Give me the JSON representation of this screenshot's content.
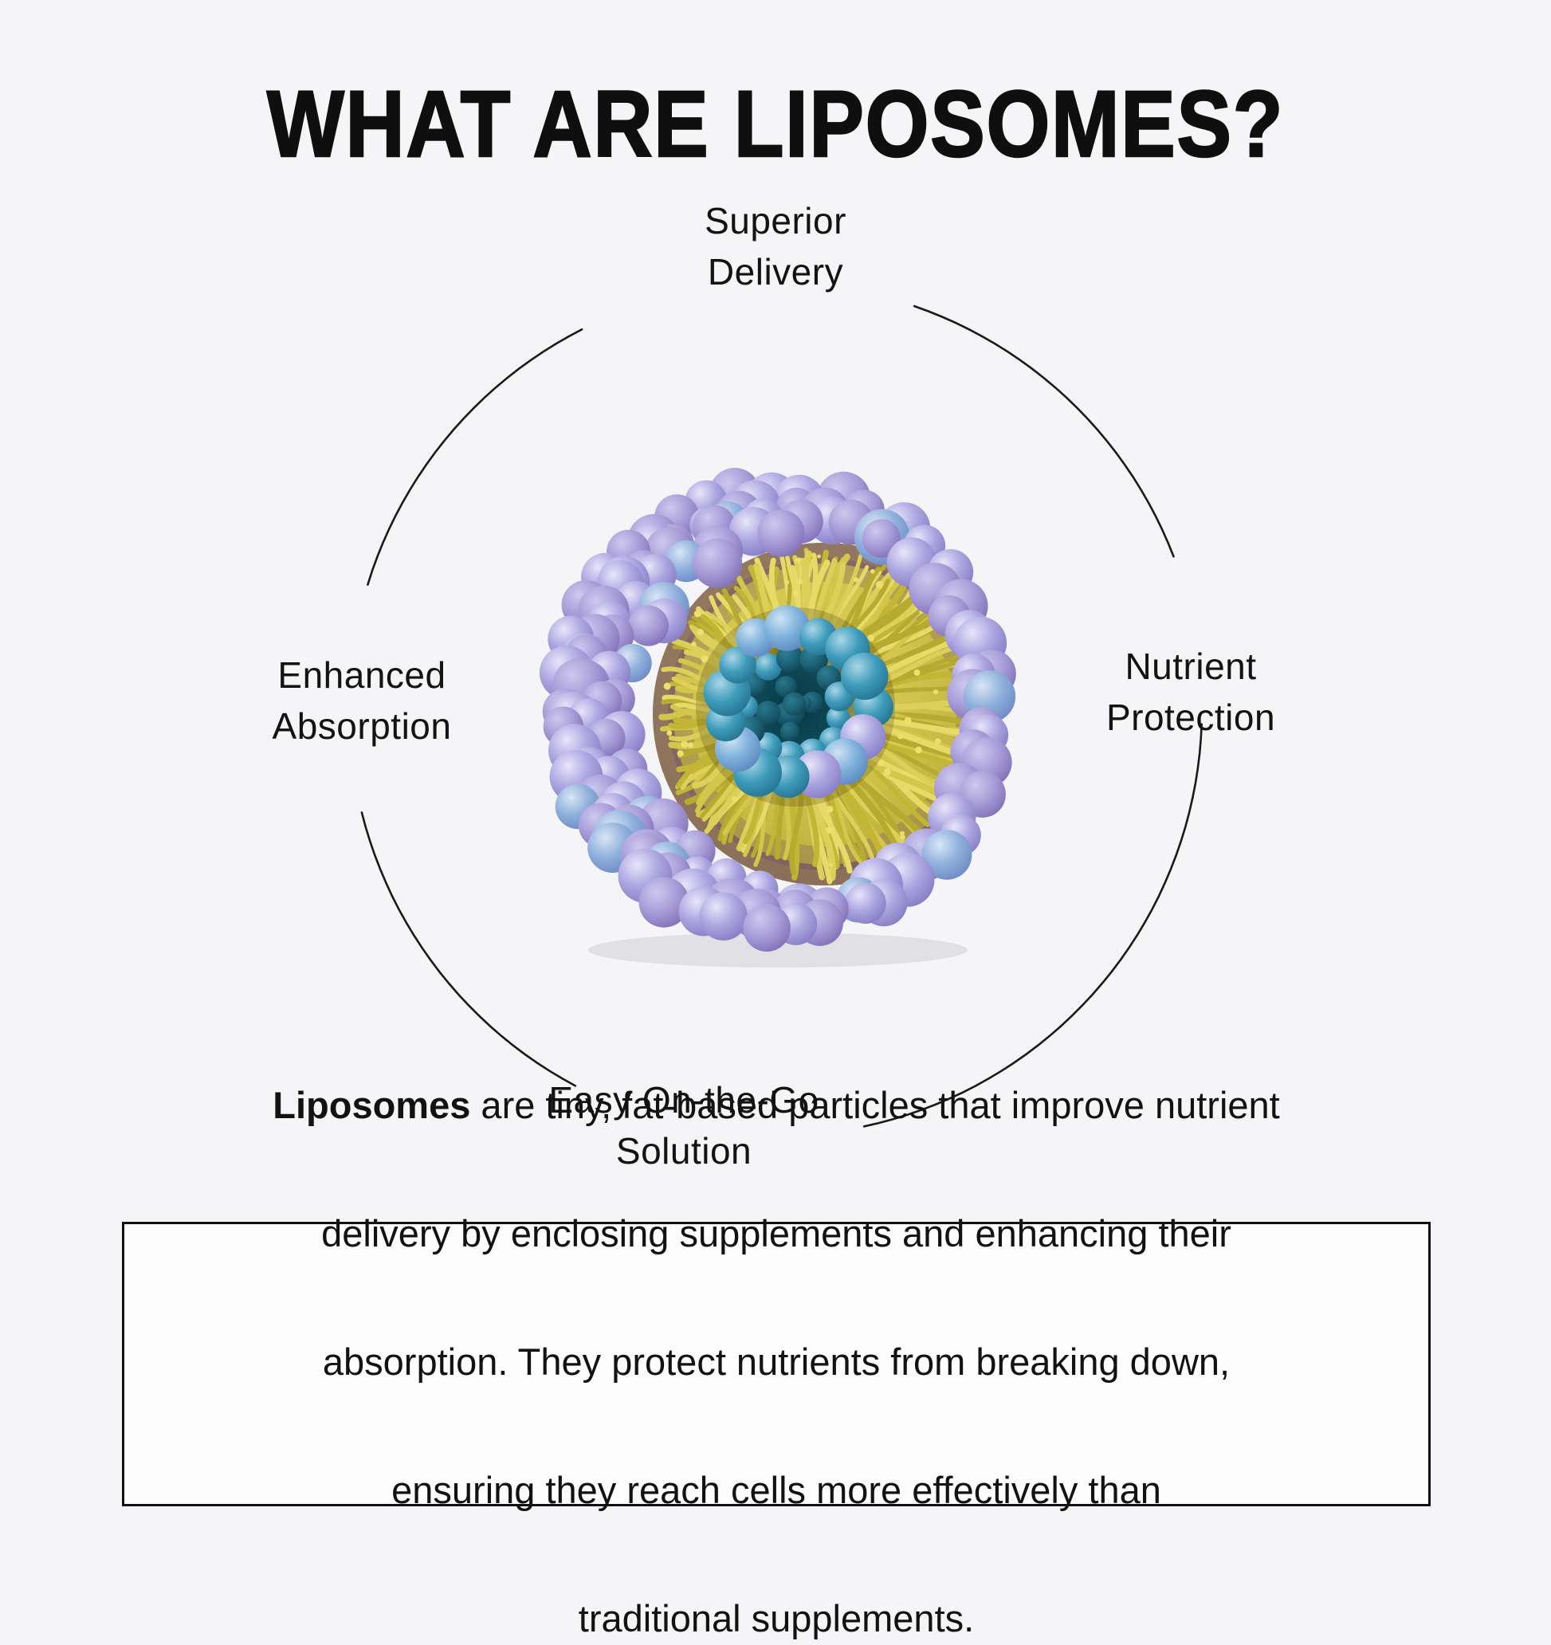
{
  "page": {
    "background": "#f5f5f7",
    "text_color": "#131313"
  },
  "title": "WHAT ARE LIPOSOMES?",
  "diagram": {
    "arc_color": "#1a1a1a",
    "labels": {
      "top": {
        "lines": [
          "Superior",
          "Delivery"
        ]
      },
      "right": {
        "lines": [
          "Nutrient",
          "Protection"
        ]
      },
      "bottom": {
        "lines": [
          "Easy On-the-Go",
          "Solution"
        ]
      },
      "left": {
        "lines": [
          "Enhanced",
          "Absorption"
        ]
      }
    },
    "illustration": {
      "name": "liposome-cross-section-3d",
      "palette": {
        "lipid_head_purple": "#aba5e0",
        "lipid_head_purple_light": "#cdc9ef",
        "lipid_head_blue": "#8fb0dc",
        "tail_yellow": "#d3c64a",
        "tail_yellow_dark": "#b1a431",
        "core_teal": "#3e9cbb",
        "core_blue": "#7fb2dc",
        "hole_dark": "#10505f",
        "under_purple": "#5a3178"
      }
    }
  },
  "info_box": {
    "lines": [
      {
        "bold": "Liposomes",
        "rest": " are tiny, fat-based particles that improve nutrient"
      },
      {
        "bold": "",
        "rest": "delivery by enclosing supplements and enhancing their"
      },
      {
        "bold": "",
        "rest": "absorption. They protect nutrients from breaking down,"
      },
      {
        "bold": "",
        "rest": "ensuring they reach cells more effectively than"
      },
      {
        "bold": "",
        "rest": "traditional supplements."
      }
    ]
  }
}
